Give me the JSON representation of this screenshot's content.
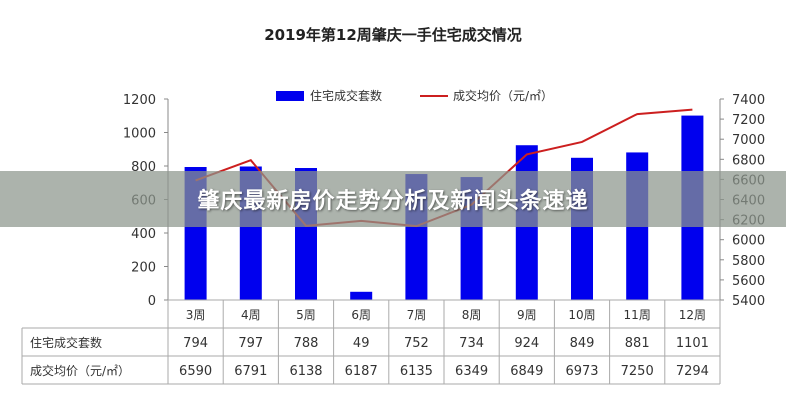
{
  "chart_data": {
    "type": "bar",
    "title": "2019年第12周肇庆一手住宅成交情况",
    "categories": [
      "3周",
      "4周",
      "5周",
      "6周",
      "7周",
      "8周",
      "9周",
      "10周",
      "11周",
      "12周"
    ],
    "series": [
      {
        "name": "住宅成交套数",
        "type": "bar",
        "axis": "left",
        "color": "#0000ee",
        "values": [
          794,
          797,
          788,
          49,
          752,
          734,
          924,
          849,
          881,
          1101
        ]
      },
      {
        "name": "成交均价（元/㎡）",
        "type": "line",
        "axis": "right",
        "color": "#cc1f1f",
        "values": [
          6590,
          6791,
          6138,
          6187,
          6135,
          6349,
          6849,
          6973,
          7250,
          7294
        ]
      }
    ],
    "y_left": {
      "min": 0,
      "max": 1200,
      "ticks": [
        0,
        200,
        400,
        600,
        800,
        1000,
        1200
      ]
    },
    "y_right": {
      "min": 5400,
      "max": 7400,
      "ticks": [
        5400,
        5600,
        5800,
        6000,
        6200,
        6400,
        6600,
        6800,
        7000,
        7200,
        7400
      ]
    },
    "legend_position": "top-center",
    "grid": false,
    "data_table": {
      "rows": [
        {
          "label": "住宅成交套数",
          "values": [
            "794",
            "797",
            "788",
            "49",
            "752",
            "734",
            "924",
            "849",
            "881",
            "1101"
          ]
        },
        {
          "label": "成交均价（元/㎡）",
          "values": [
            "6590",
            "6791",
            "6138",
            "6187",
            "6135",
            "6349",
            "6849",
            "6973",
            "7250",
            "7294"
          ]
        }
      ]
    }
  },
  "banner": {
    "text": "肇庆最新房价走势分析及新闻头条速递"
  }
}
